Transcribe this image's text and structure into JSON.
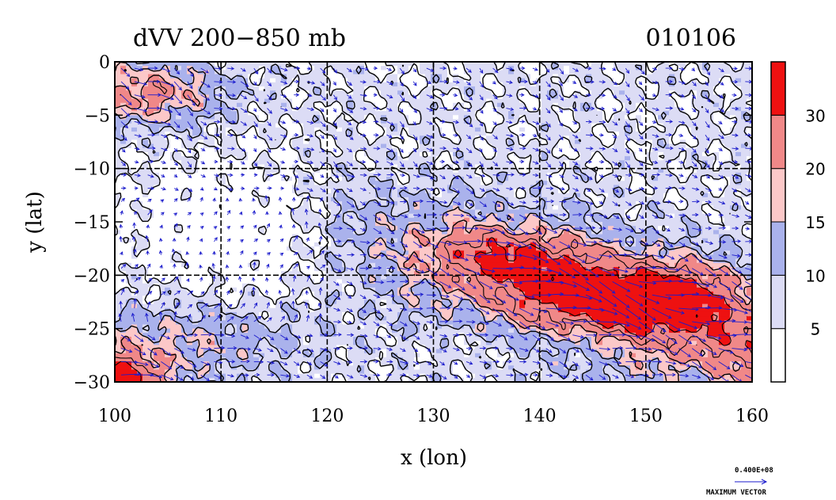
{
  "chart_data": {
    "type": "heatmap",
    "title": "dVV 200−850 mb",
    "date_label": "010106",
    "xlabel": "x (lon)",
    "ylabel": "y (lat)",
    "xlim": [
      100,
      160
    ],
    "ylim": [
      -30,
      0
    ],
    "x_ticks": [
      "100",
      "110",
      "120",
      "130",
      "140",
      "150",
      "160"
    ],
    "y_ticks": [
      "0",
      "−5",
      "−10",
      "−15",
      "−20",
      "−25",
      "−30"
    ],
    "x_tick_values": [
      100,
      110,
      120,
      130,
      140,
      150,
      160
    ],
    "y_tick_values": [
      0,
      -5,
      -10,
      -15,
      -20,
      -25,
      -30
    ],
    "grid": true,
    "colorbar": {
      "labels": [
        "5",
        "10",
        "15",
        "20",
        "30"
      ],
      "levels": [
        0,
        5,
        10,
        15,
        20,
        30,
        40
      ],
      "colors": [
        "#ffffff",
        "#dcdcf5",
        "#aab2ec",
        "#fcc8c8",
        "#f08888",
        "#ee1111"
      ]
    },
    "vector_legend": {
      "value": "0.400E+08",
      "label": "MAXIMUM VECTOR",
      "color": "#1a1acc"
    },
    "field_features": [
      {
        "desc": "jet core maximum",
        "lon": 150,
        "lat": -22,
        "value": 34
      },
      {
        "desc": "secondary maximum",
        "lon": 137,
        "lat": -18,
        "value": 32
      },
      {
        "desc": "upper-left maximum",
        "lon": 103,
        "lat": -3,
        "value": 22
      },
      {
        "desc": "lower-left maximum",
        "lon": 101,
        "lat": -29,
        "value": 30
      },
      {
        "desc": "central minimum",
        "lon": 110,
        "lat": -16,
        "value": 3
      }
    ]
  }
}
